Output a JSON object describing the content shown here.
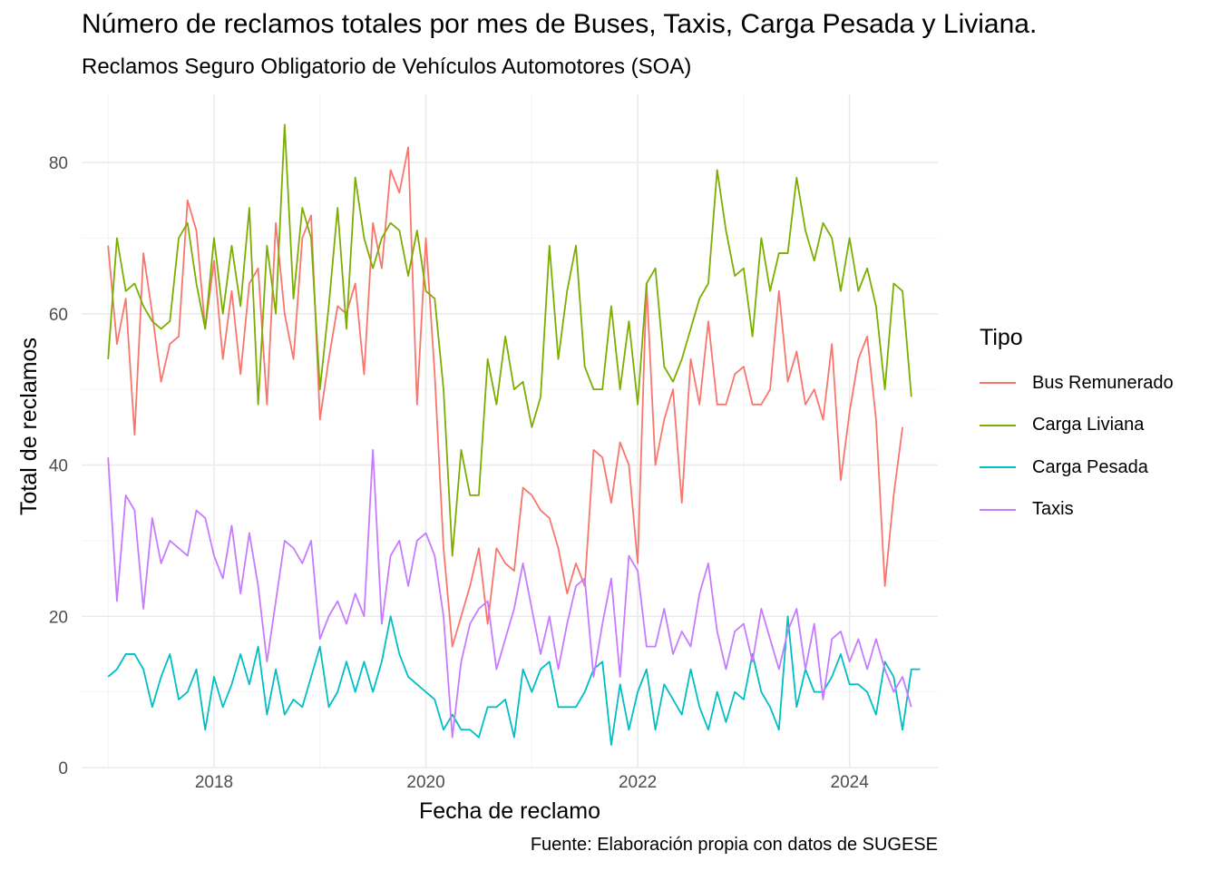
{
  "title": "Número de reclamos totales por mes de Buses, Taxis, Carga Pesada y Liviana.",
  "subtitle": "Reclamos Seguro Obligatorio de Vehículos Automotores (SOA)",
  "caption": "Fuente: Elaboración propia con datos de SUGESE",
  "chart_data": {
    "type": "line",
    "xlabel": "Fecha de reclamo",
    "ylabel": "Total de reclamos",
    "x_ticks": [
      "2018",
      "2020",
      "2022",
      "2024"
    ],
    "y_ticks": [
      0,
      20,
      40,
      60,
      80
    ],
    "ylim": [
      0,
      89
    ],
    "xlim": [
      "2016-10",
      "2024-11"
    ],
    "x_start": "2017-01",
    "x_step": "1 month",
    "grid": true,
    "legend": {
      "title": "Tipo",
      "position": "right"
    },
    "series": [
      {
        "name": "Bus Remunerado",
        "color": "#F8766D",
        "values": [
          69,
          56,
          62,
          44,
          68,
          60,
          51,
          56,
          57,
          75,
          71,
          58,
          67,
          54,
          63,
          52,
          64,
          66,
          48,
          72,
          60,
          54,
          70,
          73,
          46,
          54,
          61,
          60,
          64,
          52,
          72,
          66,
          79,
          76,
          82,
          48,
          70,
          52,
          29,
          16,
          20,
          24,
          29,
          19,
          29,
          27,
          26,
          37,
          36,
          34,
          33,
          29,
          23,
          27,
          24,
          42,
          41,
          35,
          43,
          40,
          27,
          64,
          40,
          46,
          50,
          35,
          54,
          48,
          59,
          48,
          48,
          52,
          53,
          48,
          48,
          50,
          63,
          51,
          55,
          48,
          50,
          46,
          56,
          38,
          47,
          54,
          57,
          46,
          24,
          36,
          45
        ]
      },
      {
        "name": "Carga Liviana",
        "color": "#7CAE00",
        "values": [
          54,
          70,
          63,
          64,
          61,
          59,
          58,
          59,
          70,
          72,
          64,
          58,
          70,
          60,
          69,
          61,
          74,
          48,
          69,
          60,
          85,
          62,
          74,
          70,
          50,
          61,
          74,
          58,
          78,
          70,
          66,
          70,
          72,
          71,
          65,
          71,
          63,
          62,
          50,
          28,
          42,
          36,
          36,
          54,
          48,
          57,
          50,
          51,
          45,
          49,
          69,
          54,
          63,
          69,
          53,
          50,
          50,
          61,
          50,
          59,
          48,
          64,
          66,
          53,
          51,
          54,
          58,
          62,
          64,
          79,
          71,
          65,
          66,
          57,
          70,
          63,
          68,
          68,
          78,
          71,
          67,
          72,
          70,
          63,
          70,
          63,
          66,
          61,
          50,
          64,
          63,
          49
        ]
      },
      {
        "name": "Carga Pesada",
        "color": "#00BFC4",
        "values": [
          12,
          13,
          15,
          15,
          13,
          8,
          12,
          15,
          9,
          10,
          13,
          5,
          12,
          8,
          11,
          15,
          11,
          16,
          7,
          13,
          7,
          9,
          8,
          12,
          16,
          8,
          10,
          14,
          10,
          14,
          10,
          14,
          20,
          15,
          12,
          11,
          10,
          9,
          5,
          7,
          5,
          5,
          4,
          8,
          8,
          9,
          4,
          13,
          10,
          13,
          14,
          8,
          8,
          8,
          10,
          13,
          14,
          3,
          11,
          5,
          10,
          13,
          5,
          11,
          9,
          7,
          13,
          8,
          5,
          10,
          6,
          10,
          9,
          15,
          10,
          8,
          5,
          20,
          8,
          13,
          10,
          10,
          12,
          15,
          11,
          11,
          10,
          7,
          14,
          12,
          5,
          13,
          13
        ]
      },
      {
        "name": "Taxis",
        "color": "#C77CFF",
        "values": [
          41,
          22,
          36,
          34,
          21,
          33,
          27,
          30,
          29,
          28,
          34,
          33,
          28,
          25,
          32,
          23,
          31,
          24,
          14,
          22,
          30,
          29,
          27,
          30,
          17,
          20,
          22,
          19,
          23,
          20,
          42,
          19,
          28,
          30,
          24,
          30,
          31,
          28,
          20,
          4,
          14,
          19,
          21,
          22,
          13,
          17,
          21,
          27,
          21,
          15,
          20,
          13,
          19,
          24,
          25,
          12,
          19,
          25,
          12,
          28,
          26,
          16,
          16,
          21,
          15,
          18,
          16,
          23,
          27,
          18,
          13,
          18,
          19,
          14,
          21,
          17,
          13,
          18,
          21,
          13,
          19,
          9,
          17,
          18,
          14,
          17,
          13,
          17,
          13,
          10,
          12,
          8
        ]
      }
    ]
  }
}
